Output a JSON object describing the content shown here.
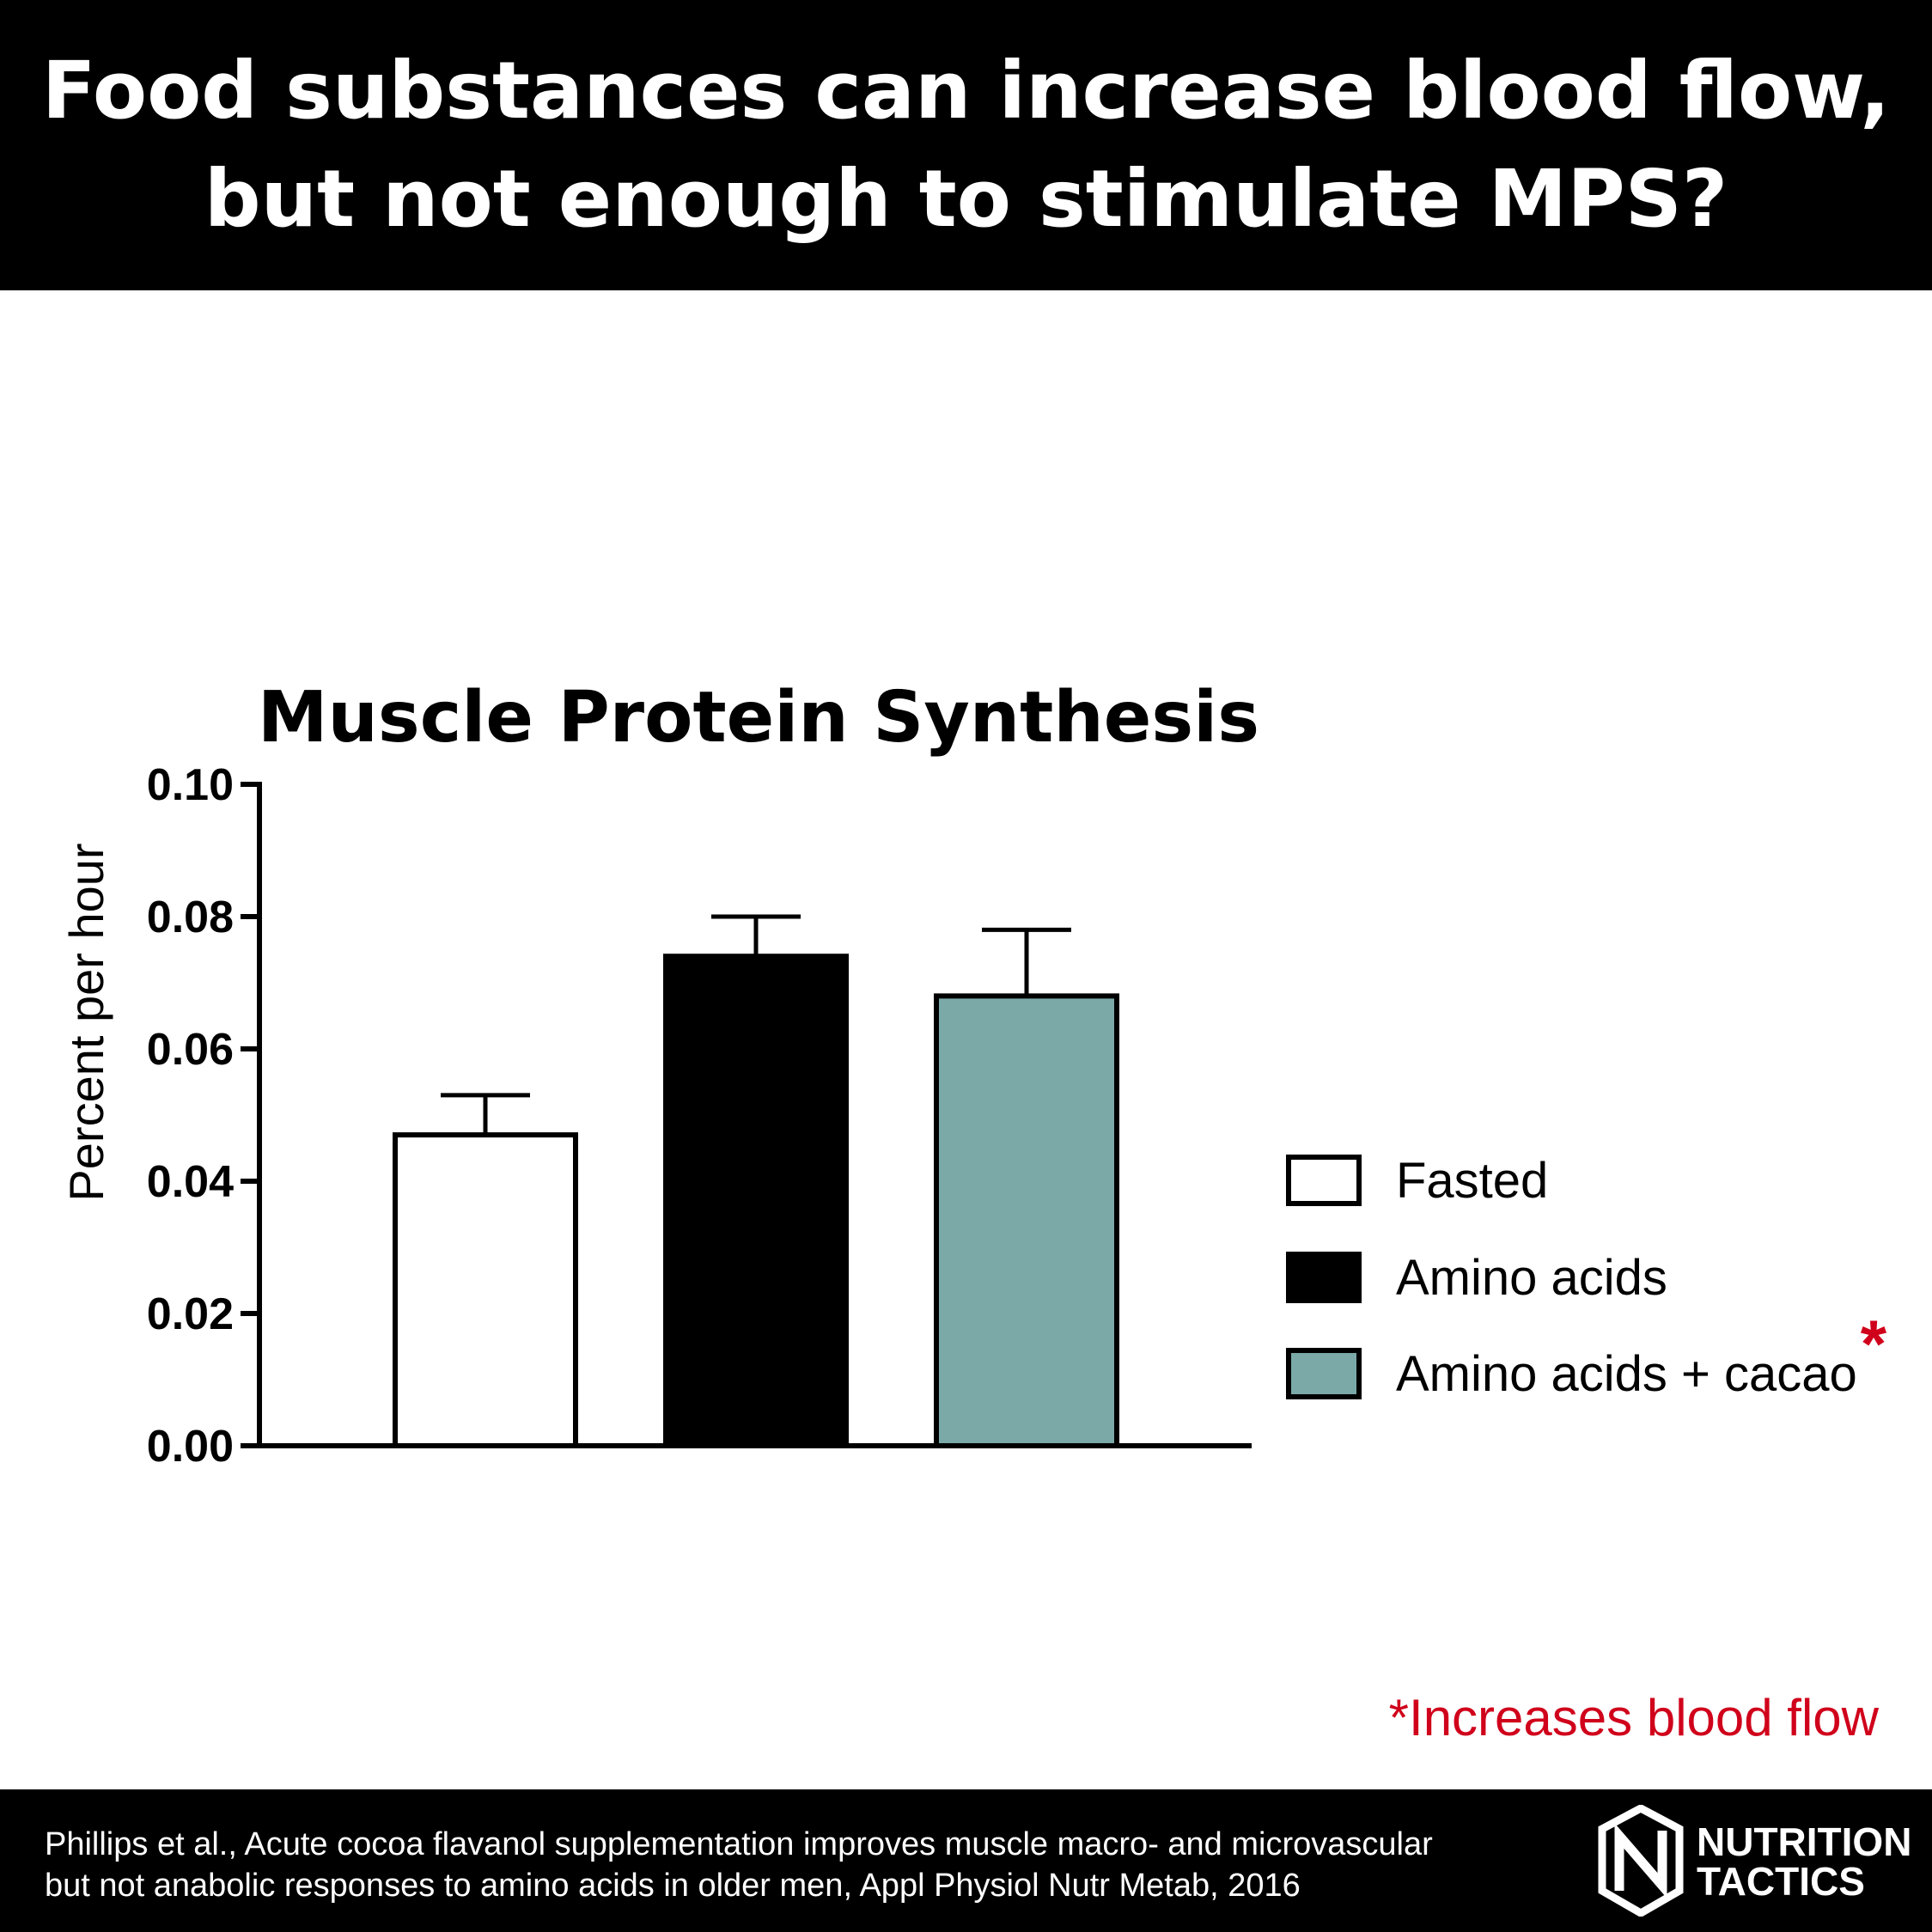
{
  "header": {
    "line1": "Food substances can increase blood flow,",
    "line2": "but not enough to stimulate MPS?"
  },
  "chart_data": {
    "type": "bar",
    "title": "Muscle Protein Synthesis",
    "ylabel": "Percent per hour",
    "xlabel": "",
    "ylim": [
      0,
      0.1
    ],
    "yticks": [
      "0.00",
      "0.02",
      "0.04",
      "0.06",
      "0.08",
      "0.10"
    ],
    "categories": [
      "Fasted",
      "Amino acids",
      "Amino acids + cacao"
    ],
    "values": [
      0.047,
      0.074,
      0.068
    ],
    "error": [
      0.006,
      0.006,
      0.01
    ],
    "colors": [
      "#ffffff",
      "#000000",
      "#7aa9a8"
    ],
    "legend": {
      "position": "right",
      "entries": [
        "Fasted",
        "Amino acids",
        "Amino acids + cacao"
      ],
      "marker": "*"
    },
    "grid": false
  },
  "note": "*Increases blood flow",
  "footer": {
    "citation_line1": "Phillips et al., Acute cocoa flavanol supplementation improves muscle macro- and microvascular",
    "citation_line2": "but not anabolic responses to amino acids in older men, Appl Physiol Nutr Metab, 2016",
    "logo_line1": "NUTRITION",
    "logo_line2": "TACTICS"
  }
}
